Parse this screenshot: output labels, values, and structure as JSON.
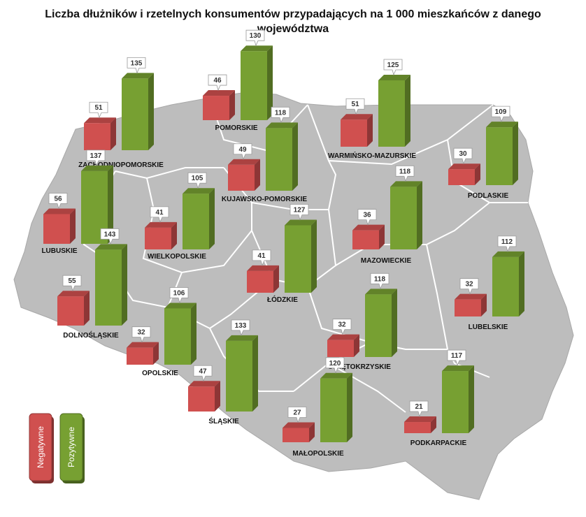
{
  "chart_data": {
    "type": "bar",
    "title_line1": "Liczba dłużników i rzetelnych konsumentów przypadających na 1 000 mieszkańców z danego",
    "title_line2": "województwa",
    "series": [
      {
        "name": "Negatywne",
        "color": "#d0504f"
      },
      {
        "name": "Pozytywne",
        "color": "#77a032"
      }
    ],
    "legend_position": "bottom-left",
    "regions": [
      {
        "name": "ZACHODNIOPOMORSKIE",
        "negative": 51,
        "positive": 135
      },
      {
        "name": "POMORSKIE",
        "negative": 46,
        "positive": 130
      },
      {
        "name": "WARMIŃSKO-MAZURSKIE",
        "negative": 51,
        "positive": 125
      },
      {
        "name": "PODLASKIE",
        "negative": 30,
        "positive": 109
      },
      {
        "name": "KUJAWSKO-POMORSKIE",
        "negative": 49,
        "positive": 118
      },
      {
        "name": "LUBUSKIE",
        "negative": 56,
        "positive": 137
      },
      {
        "name": "WIELKOPOLSKIE",
        "negative": 41,
        "positive": 105
      },
      {
        "name": "MAZOWIECKIE",
        "negative": 36,
        "positive": 118
      },
      {
        "name": "ŁÓDZKIE",
        "negative": 41,
        "positive": 127
      },
      {
        "name": "DOLNOŚLĄSKIE",
        "negative": 55,
        "positive": 143
      },
      {
        "name": "LUBELSKIE",
        "negative": 32,
        "positive": 112
      },
      {
        "name": "OPOLSKIE",
        "negative": 32,
        "positive": 106
      },
      {
        "name": "ŚWIĘTOKRZYSKIE",
        "negative": 32,
        "positive": 118
      },
      {
        "name": "ŚLĄSKIE",
        "negative": 47,
        "positive": 133
      },
      {
        "name": "MAŁOPOLSKIE",
        "negative": 27,
        "positive": 120
      },
      {
        "name": "PODKARPACKIE",
        "negative": 21,
        "positive": 117
      }
    ]
  }
}
